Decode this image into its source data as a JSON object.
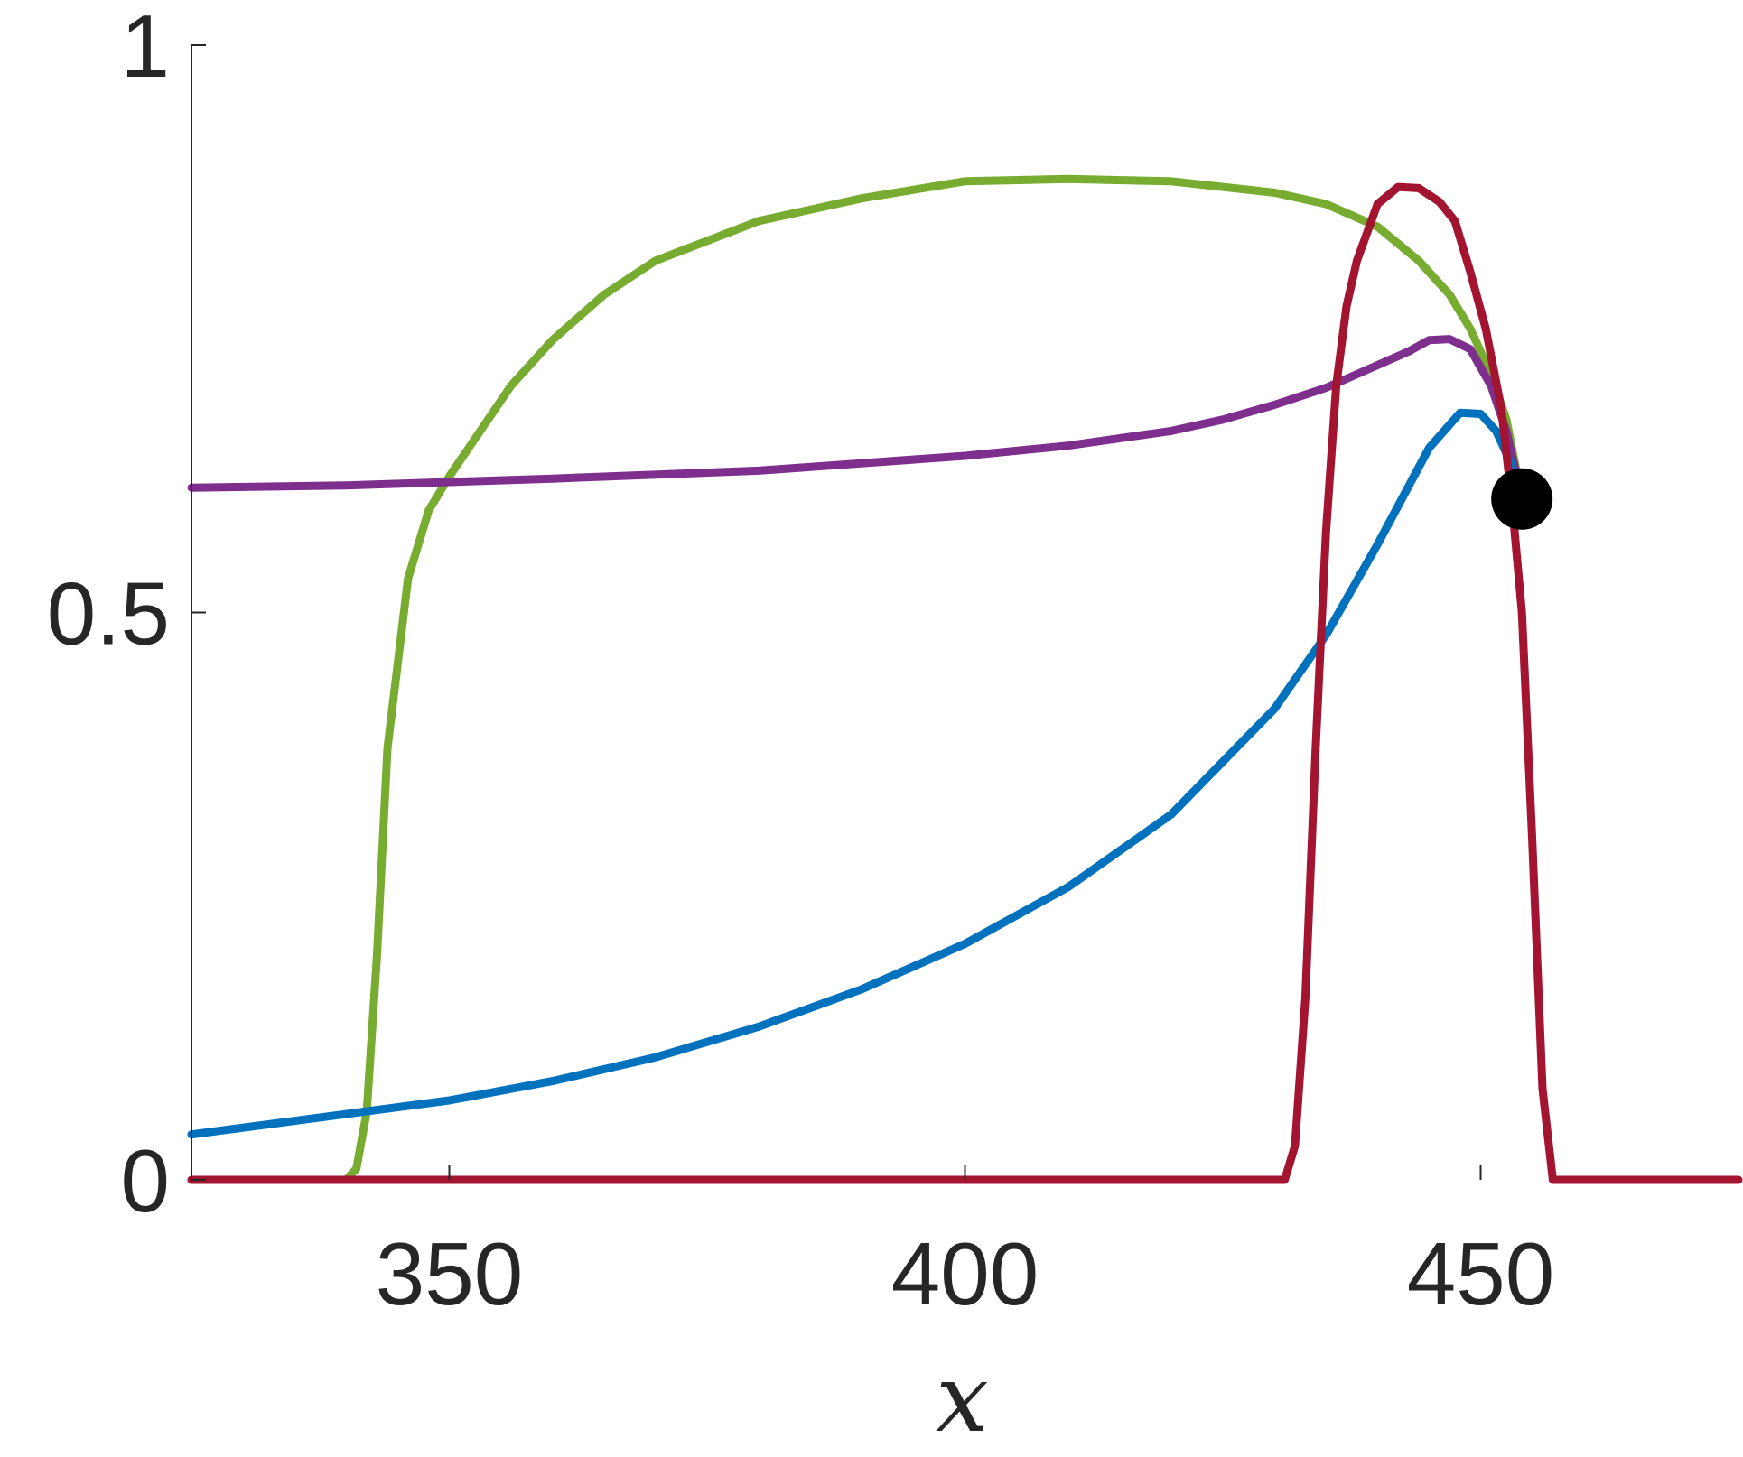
{
  "chart_data": {
    "type": "line",
    "title": "",
    "xlabel": "x",
    "ylabel": "",
    "xlim": [
      325,
      475
    ],
    "ylim": [
      0,
      1
    ],
    "xticks": [
      350,
      400,
      450
    ],
    "yticks": [
      0,
      0.5,
      1
    ],
    "xtick_labels": [
      "350",
      "400",
      "450"
    ],
    "ytick_labels": [
      "0",
      "0.5",
      "1"
    ],
    "grid": false,
    "legend": "none",
    "series": [
      {
        "color": "#77AC30",
        "x": [
          325,
          340,
          341,
          342,
          343,
          344,
          346,
          348,
          350,
          353,
          356,
          360,
          365,
          370,
          380,
          390,
          400,
          410,
          420,
          430,
          435,
          440,
          444,
          447,
          449,
          451,
          452.5,
          454
        ],
        "y": [
          0,
          0,
          0.01,
          0.06,
          0.2,
          0.38,
          0.53,
          0.59,
          0.62,
          0.66,
          0.7,
          0.74,
          0.78,
          0.81,
          0.845,
          0.865,
          0.88,
          0.882,
          0.88,
          0.87,
          0.86,
          0.84,
          0.81,
          0.78,
          0.75,
          0.71,
          0.67,
          0.6
        ]
      },
      {
        "color": "#7E2F8E",
        "x": [
          325,
          340,
          360,
          380,
          400,
          410,
          420,
          425,
          430,
          435,
          440,
          443,
          445,
          447,
          449,
          451,
          452.5,
          454
        ],
        "y": [
          0.61,
          0.612,
          0.618,
          0.625,
          0.638,
          0.647,
          0.66,
          0.67,
          0.683,
          0.698,
          0.718,
          0.73,
          0.74,
          0.741,
          0.732,
          0.7,
          0.66,
          0.6
        ]
      },
      {
        "color": "#0072BD",
        "x": [
          325,
          340,
          350,
          360,
          370,
          380,
          390,
          400,
          410,
          420,
          430,
          435,
          440,
          445,
          448,
          450,
          451.5,
          453,
          454
        ],
        "y": [
          0.04,
          0.058,
          0.07,
          0.087,
          0.108,
          0.135,
          0.168,
          0.208,
          0.258,
          0.322,
          0.415,
          0.48,
          0.56,
          0.645,
          0.676,
          0.675,
          0.66,
          0.63,
          0.6
        ]
      },
      {
        "color": "#A2142F",
        "x": [
          325,
          431,
          432,
          433,
          434,
          435,
          436,
          437,
          438,
          440,
          442,
          444,
          446,
          447.5,
          449,
          450.5,
          452,
          453,
          454,
          455,
          456,
          457,
          475
        ],
        "y": [
          0,
          0,
          0.03,
          0.16,
          0.38,
          0.57,
          0.7,
          0.77,
          0.81,
          0.86,
          0.875,
          0.874,
          0.862,
          0.845,
          0.8,
          0.75,
          0.68,
          0.6,
          0.5,
          0.3,
          0.08,
          0,
          0
        ]
      }
    ],
    "marker": {
      "x": 454,
      "y": 0.6,
      "color": "#000000"
    }
  }
}
